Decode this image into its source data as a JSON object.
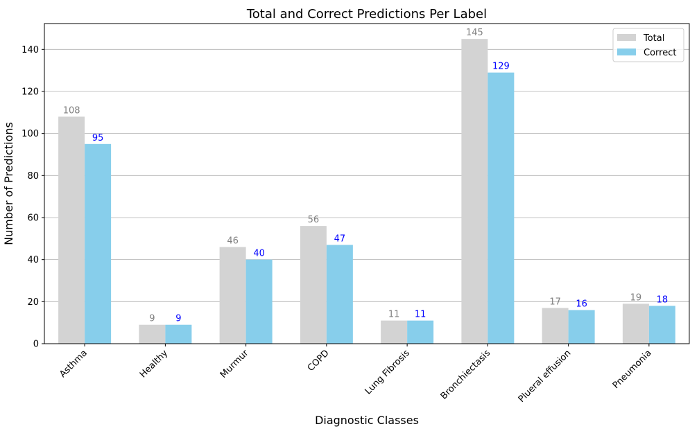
{
  "chart_data": {
    "type": "bar",
    "title": "Total and Correct Predictions Per Label",
    "xlabel": "Diagnostic Classes",
    "ylabel": "Number of Predictions",
    "categories": [
      "Asthma",
      "Healthy",
      "Murmur",
      "COPD",
      "Lung Fibrosis",
      "Bronchiectasis",
      "Plueral effusion",
      "Pneumonia"
    ],
    "series": [
      {
        "name": "Total",
        "values": [
          108,
          9,
          46,
          56,
          11,
          145,
          17,
          19
        ],
        "color": "#d3d3d3",
        "label_color": "#808080"
      },
      {
        "name": "Correct",
        "values": [
          95,
          9,
          40,
          47,
          11,
          129,
          16,
          18
        ],
        "color": "#87ceeb",
        "label_color": "#0000ff"
      }
    ],
    "ylim": [
      0,
      152.3
    ],
    "yticks": [
      0,
      20,
      40,
      60,
      80,
      100,
      120,
      140
    ],
    "grid": "y",
    "legend_position": "top-right"
  }
}
